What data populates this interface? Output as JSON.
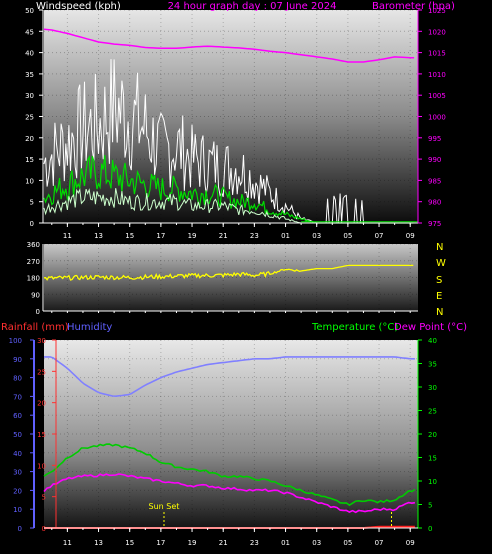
{
  "colors": {
    "background": "#000000",
    "white": "#ffffff",
    "magenta": "#ff00ff",
    "yellow": "#ffff00",
    "gust": "#ffffff",
    "wind_avg": "#00dd00",
    "wind_light": "#ccffcc",
    "humidity": "#8080ff",
    "temperature": "#00cc00",
    "dewpoint": "#ff00ff",
    "rainfall": "#ff2020",
    "red_label": "#ff3030",
    "blue_label": "#6060ff",
    "green_label": "#00ff00"
  },
  "chart_data": [
    {
      "type": "line",
      "title": "24 hour graph day : 07 June 2024",
      "left_axis_label": "Windspeed (kph)",
      "right_axis_label": "Barometer (hpa)",
      "x_ticks": [
        "11",
        "13",
        "15",
        "17",
        "19",
        "21",
        "23",
        "01",
        "03",
        "05",
        "07",
        "09"
      ],
      "left_ticks": [
        "0",
        "5",
        "10",
        "15",
        "20",
        "25",
        "30",
        "35",
        "40",
        "45",
        "50"
      ],
      "right_ticks": [
        "975",
        "980",
        "985",
        "990",
        "995",
        "1000",
        "1005",
        "1010",
        "1015",
        "1020",
        "1025"
      ],
      "ylim_left": [
        0,
        50
      ],
      "ylim_right": [
        975,
        1025
      ],
      "x_hours": [
        9.5,
        10,
        11,
        12,
        13,
        14,
        15,
        16,
        17,
        18,
        19,
        20,
        21,
        22,
        23,
        24,
        25,
        26,
        27,
        28,
        29,
        30,
        31,
        32,
        33
      ],
      "series": [
        {
          "color_key": "magenta",
          "axis": "right",
          "values": [
            1020.5,
            1020.3,
            1019.5,
            1018.5,
            1017.5,
            1017,
            1016.7,
            1016.2,
            1016,
            1016,
            1016.3,
            1016.5,
            1016.3,
            1016.1,
            1015.8,
            1015.3,
            1015,
            1014.5,
            1014,
            1013.5,
            1012.8,
            1012.8,
            1013.3,
            1014,
            1013.8
          ]
        },
        {
          "color_key": "gust",
          "axis": "left",
          "values": [
            14,
            16,
            19,
            22,
            23,
            27,
            25,
            22,
            17,
            18,
            15,
            14,
            13,
            13,
            10,
            7,
            4,
            1,
            0,
            0,
            0,
            0,
            0,
            0,
            0
          ]
        },
        {
          "color_key": "wind_avg",
          "axis": "left",
          "values": [
            6,
            7,
            9,
            11,
            12,
            11,
            10,
            9,
            8,
            8,
            7,
            7,
            6,
            5,
            5,
            3,
            2,
            1,
            0,
            0,
            0,
            0,
            0,
            0,
            0
          ]
        },
        {
          "color_key": "wind_light",
          "axis": "left",
          "values": [
            3,
            4,
            5,
            6,
            6,
            6,
            5,
            5,
            5,
            5,
            4,
            4,
            4,
            3,
            3,
            2,
            1,
            0,
            0,
            0,
            0,
            0,
            0,
            0,
            0
          ]
        }
      ]
    },
    {
      "type": "line",
      "right_labels": [
        "N",
        "W",
        "S",
        "E",
        "N"
      ],
      "left_ticks": [
        "0",
        "90",
        "180",
        "270",
        "360"
      ],
      "ylim": [
        0,
        360
      ],
      "x_hours": [
        9.5,
        11,
        13,
        15,
        17,
        19,
        21,
        22,
        23,
        24,
        25,
        26,
        27,
        28,
        29,
        30,
        31,
        32,
        33
      ],
      "series": [
        {
          "color_key": "yellow",
          "values": [
            175,
            178,
            182,
            180,
            185,
            190,
            192,
            198,
            192,
            200,
            225,
            215,
            228,
            228,
            245,
            245,
            245,
            245,
            245
          ]
        }
      ]
    },
    {
      "type": "line",
      "left_axis_label": "Rainfall (mm)",
      "left_axis_label2": "Humidity",
      "right_axis_label": "Temperature (°C)",
      "right_axis_label2": "Dew Point (°C)",
      "annotation": "Sun Set",
      "sunset_hour": 17.2,
      "marker_hour": 31.8,
      "x_ticks": [
        "11",
        "13",
        "15",
        "17",
        "19",
        "21",
        "23",
        "01",
        "03",
        "05",
        "07",
        "09"
      ],
      "humidity_ticks": [
        "0",
        "10",
        "20",
        "30",
        "40",
        "50",
        "60",
        "70",
        "80",
        "90",
        "100"
      ],
      "rain_ticks": [
        "0",
        "5",
        "10",
        "15",
        "20",
        "25",
        "30"
      ],
      "temp_ticks": [
        "0",
        "5",
        "10",
        "15",
        "20",
        "25",
        "30",
        "35",
        "40"
      ],
      "ylim_humidity": [
        0,
        100
      ],
      "ylim_rain": [
        0,
        30
      ],
      "ylim_temp": [
        0,
        40
      ],
      "x_hours": [
        9.5,
        10,
        11,
        12,
        13,
        14,
        15,
        16,
        17,
        18,
        19,
        20,
        21,
        22,
        23,
        24,
        25,
        26,
        27,
        28,
        29,
        30,
        31,
        32,
        33
      ],
      "series": [
        {
          "color_key": "humidity",
          "axis": "humidity",
          "values": [
            91,
            91,
            85,
            77,
            72,
            70,
            71,
            76,
            80,
            83,
            85,
            87,
            88,
            89,
            90,
            90,
            91,
            91,
            91,
            91,
            91,
            91,
            91,
            91,
            90
          ]
        },
        {
          "color_key": "temperature",
          "axis": "temp",
          "values": [
            11,
            12,
            15,
            17,
            17.5,
            17.7,
            17,
            16,
            14,
            13,
            12.5,
            12,
            11,
            11,
            10.5,
            10,
            9,
            8,
            7,
            6,
            5,
            6,
            5.5,
            6,
            8
          ]
        },
        {
          "color_key": "dewpoint",
          "axis": "temp",
          "values": [
            8,
            9,
            10.5,
            11,
            11.2,
            11.5,
            11,
            10.5,
            10,
            9.5,
            9,
            9,
            8.5,
            8.3,
            8,
            8,
            7.5,
            6.5,
            5.5,
            4.5,
            3.5,
            3.5,
            4,
            4,
            5.5
          ]
        },
        {
          "color_key": "rainfall",
          "axis": "rain",
          "values": [
            0,
            0,
            0,
            0,
            0,
            0,
            0,
            0,
            0,
            0,
            0,
            0,
            0,
            0,
            0,
            0,
            0,
            0,
            0,
            0,
            0,
            0,
            0.2,
            0.2,
            0.2
          ]
        }
      ]
    }
  ]
}
